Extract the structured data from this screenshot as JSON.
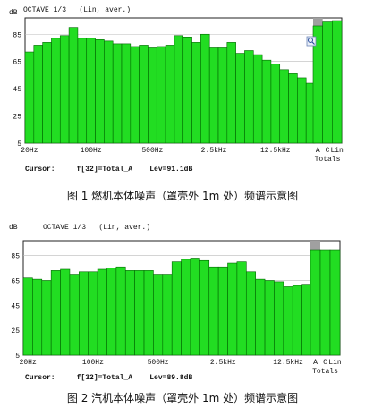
{
  "charts": [
    {
      "header": {
        "title": "OCTAVE 1/3   (Lin, aver.)",
        "unit": "dB"
      },
      "cursor": {
        "label": "Cursor:",
        "field": "f[32]=Total_A",
        "level": "Lev=91.1dB"
      },
      "caption": "图 1  燃机本体噪声（罩壳外 1m 处）频谱示意图",
      "totals_label": "Totals",
      "highlight_color": "#a0a0a0",
      "bar_color": "#22dd22",
      "icon": "zoom-magnifier-icon"
    },
    {
      "header": {
        "title": "OCTAVE 1/3   (Lin, aver.)",
        "unit": "dB"
      },
      "cursor": {
        "label": "Cursor:",
        "field": "f[32]=Total_A",
        "level": "Lev=89.8dB"
      },
      "caption": "图 2  汽机本体噪声（罩壳外 1m 处）频谱示意图",
      "totals_label": "Totals",
      "highlight_color": "#a0a0a0",
      "bar_color": "#22dd22"
    }
  ],
  "chart_data": [
    {
      "type": "bar",
      "title": "OCTAVE 1/3   (Lin, aver.)",
      "ylabel": "dB",
      "ylim": [
        5,
        97
      ],
      "yticks": [
        5,
        25,
        45,
        65,
        85
      ],
      "xticks": [
        "20Hz",
        "100Hz",
        "500Hz",
        "2.5kHz",
        "12.5kHz"
      ],
      "totals_ticks": [
        "A",
        "C",
        "Lin"
      ],
      "values": [
        72,
        77,
        79,
        82,
        84,
        90,
        82,
        82,
        81,
        80,
        78,
        78,
        76,
        77,
        75,
        76,
        77,
        84,
        83,
        79,
        85,
        75,
        75,
        79,
        71,
        73,
        70,
        66,
        63,
        59,
        56,
        53,
        49
      ],
      "totals": [
        91.1,
        94,
        95
      ],
      "highlighted": "A"
    },
    {
      "type": "bar",
      "title": "OCTAVE 1/3   (Lin, aver.)",
      "ylabel": "dB",
      "ylim": [
        5,
        97
      ],
      "yticks": [
        5,
        25,
        45,
        65,
        85
      ],
      "xticks": [
        "20Hz",
        "100Hz",
        "500Hz",
        "2.5kHz",
        "12.5kHz"
      ],
      "totals_ticks": [
        "A",
        "C",
        "Lin"
      ],
      "values": [
        67,
        66,
        65,
        73,
        74,
        70,
        72,
        72,
        74,
        75,
        76,
        73,
        73,
        73,
        70,
        70,
        80,
        82,
        83,
        81,
        76,
        76,
        79,
        80,
        72,
        66,
        65,
        64,
        60,
        61,
        62
      ],
      "totals": [
        89.8,
        89.8,
        89.8
      ],
      "highlighted": "A"
    }
  ]
}
